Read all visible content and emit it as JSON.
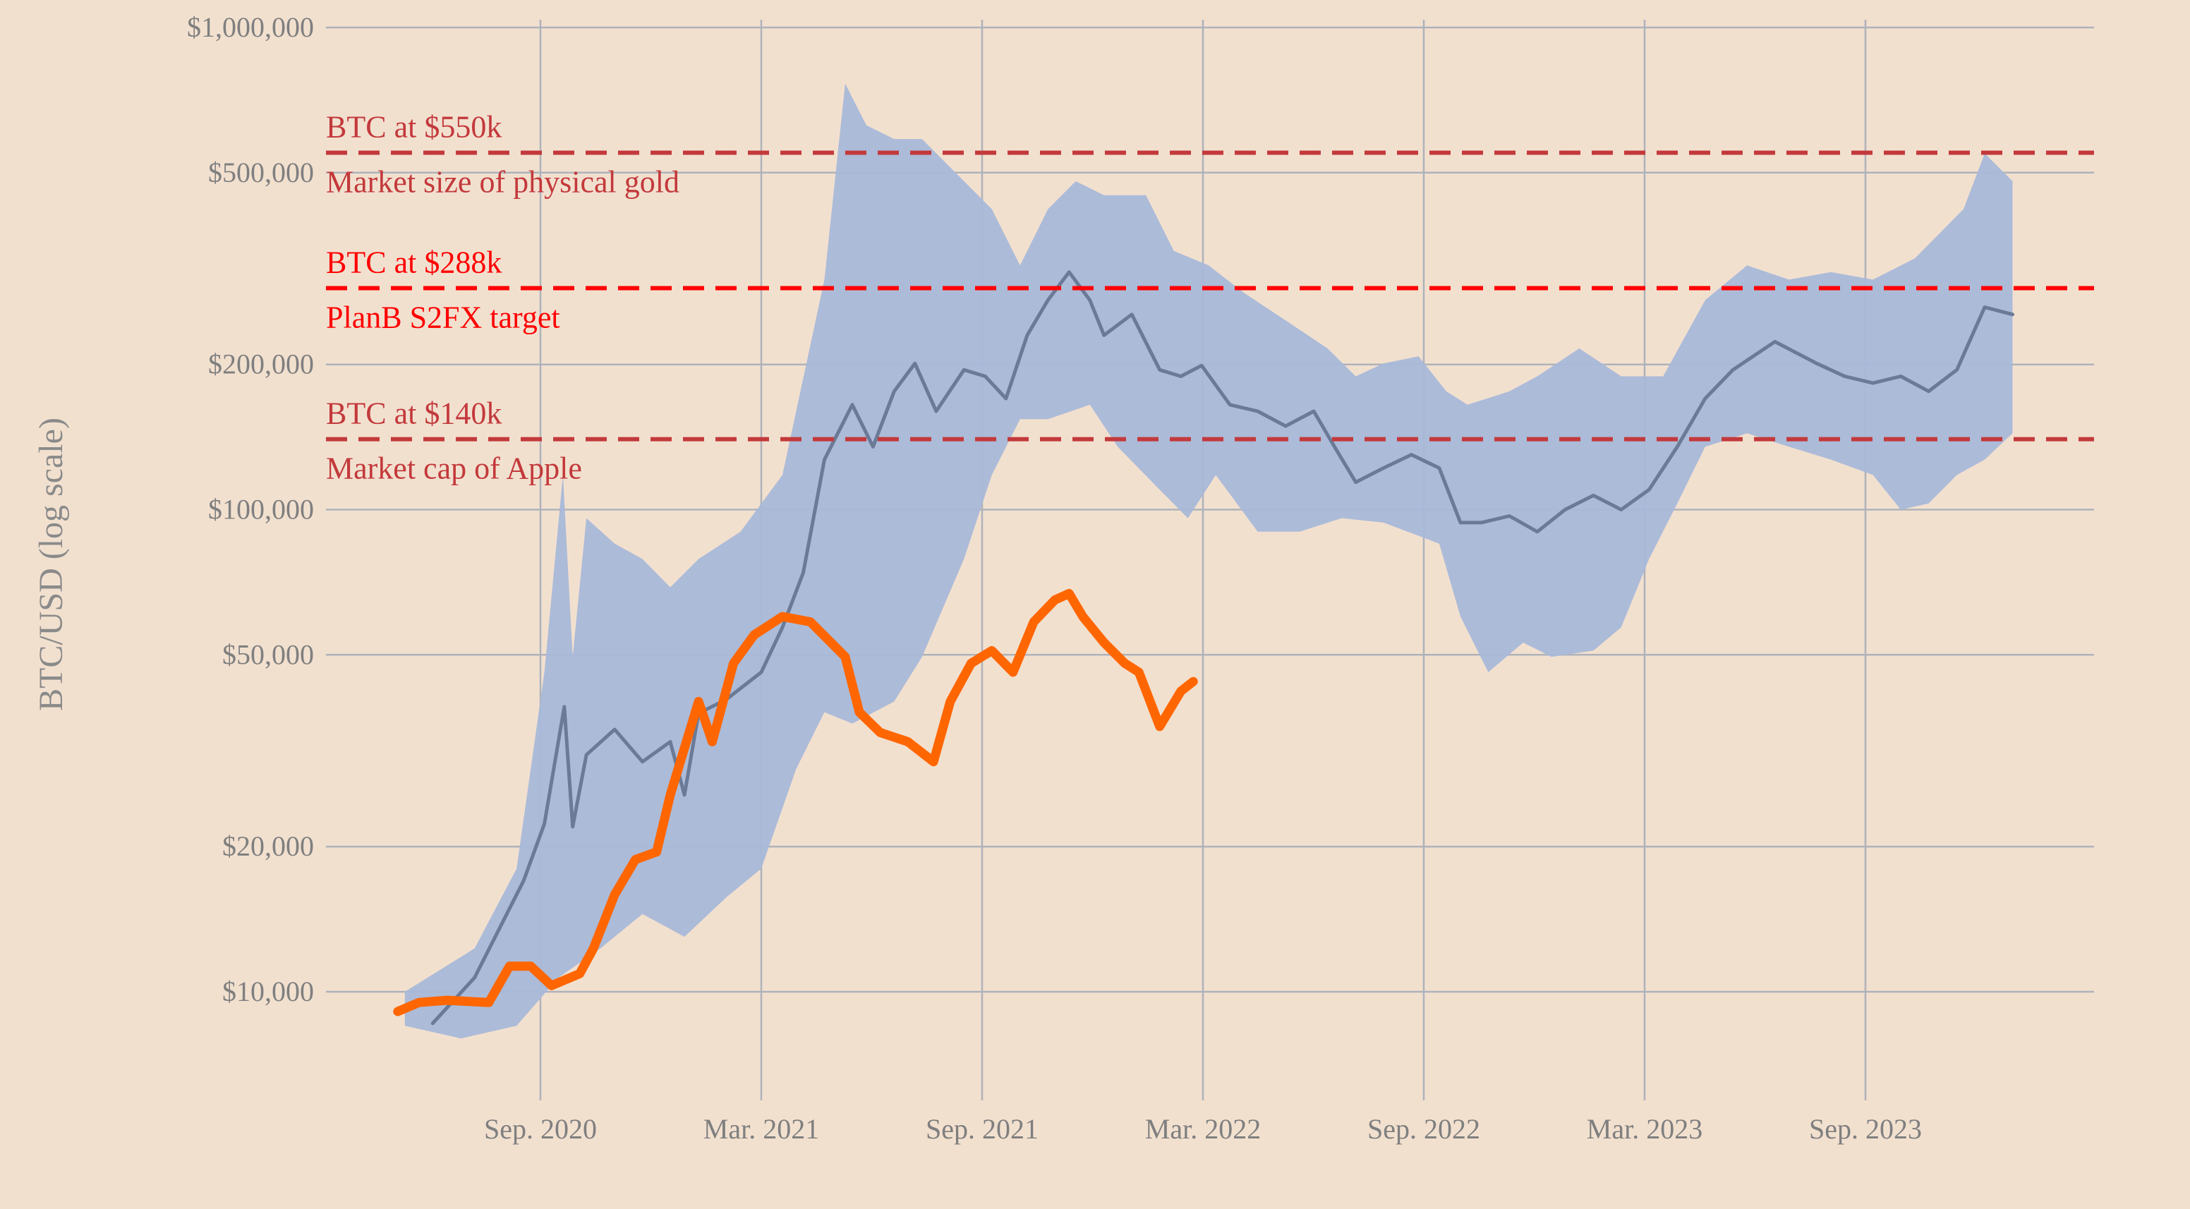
{
  "chart_data": {
    "type": "line",
    "title": "",
    "xlabel": "",
    "ylabel": "BTC/USD (log scale)",
    "yscale": "log",
    "ylim": [
      7000,
      1000000
    ],
    "xlim_decimal_year": [
      2020.25,
      2024.3
    ],
    "grid": true,
    "y_ticks": [
      {
        "value": 1000000,
        "label": "$1,000,000"
      },
      {
        "value": 500000,
        "label": "$500,000"
      },
      {
        "value": 200000,
        "label": "$200,000"
      },
      {
        "value": 100000,
        "label": "$100,000"
      },
      {
        "value": 50000,
        "label": "$50,000"
      },
      {
        "value": 20000,
        "label": "$20,000"
      },
      {
        "value": 10000,
        "label": "$10,000"
      }
    ],
    "x_ticks": [
      {
        "value": 2020.667,
        "label": "Sep. 2020"
      },
      {
        "value": 2021.167,
        "label": "Mar. 2021"
      },
      {
        "value": 2021.667,
        "label": "Sep. 2021"
      },
      {
        "value": 2022.167,
        "label": "Mar. 2022"
      },
      {
        "value": 2022.667,
        "label": "Sep. 2022"
      },
      {
        "value": 2023.167,
        "label": "Mar. 2023"
      },
      {
        "value": 2023.667,
        "label": "Sep. 2023"
      }
    ],
    "reference_lines": [
      {
        "value": 550000,
        "label_above": "BTC at $550k",
        "label_below": "Market size of physical gold",
        "color": "#c3393b"
      },
      {
        "value": 288000,
        "label_above": "BTC at $288k",
        "label_below": "PlanB S2FX target",
        "color": "#ff0000"
      },
      {
        "value": 140000,
        "label_above": "BTC at $140k",
        "label_below": "Market cap of Apple",
        "color": "#c3393b"
      }
    ],
    "series": [
      {
        "name": "Projection band",
        "kind": "band",
        "color": "#a8b8d8",
        "upper": [
          [
            2020.36,
            10000
          ],
          [
            2020.518,
            12300
          ],
          [
            2020.613,
            18000
          ],
          [
            2020.676,
            46000
          ],
          [
            2020.718,
            118000
          ],
          [
            2020.74,
            49500
          ],
          [
            2020.771,
            96000
          ],
          [
            2020.835,
            85000
          ],
          [
            2020.898,
            79000
          ],
          [
            2020.961,
            69000
          ],
          [
            2021.025,
            79000
          ],
          [
            2021.12,
            90000
          ],
          [
            2021.215,
            118000
          ],
          [
            2021.31,
            300000
          ],
          [
            2021.357,
            765000
          ],
          [
            2021.405,
            627000
          ],
          [
            2021.468,
            587000
          ],
          [
            2021.531,
            587000
          ],
          [
            2021.626,
            480000
          ],
          [
            2021.689,
            420000
          ],
          [
            2021.753,
            321000
          ],
          [
            2021.816,
            420000
          ],
          [
            2021.879,
            480000
          ],
          [
            2021.943,
            449000
          ],
          [
            2022.038,
            449000
          ],
          [
            2022.101,
            344000
          ],
          [
            2022.18,
            321000
          ],
          [
            2022.259,
            282000
          ],
          [
            2022.354,
            247000
          ],
          [
            2022.449,
            216000
          ],
          [
            2022.513,
            189000
          ],
          [
            2022.576,
            201000
          ],
          [
            2022.655,
            208000
          ],
          [
            2022.718,
            176000
          ],
          [
            2022.766,
            165000
          ],
          [
            2022.861,
            176000
          ],
          [
            2022.924,
            189000
          ],
          [
            2023.019,
            216000
          ],
          [
            2023.114,
            189000
          ],
          [
            2023.209,
            189000
          ],
          [
            2023.304,
            272000
          ],
          [
            2023.399,
            321000
          ],
          [
            2023.494,
            300000
          ],
          [
            2023.589,
            311000
          ],
          [
            2023.684,
            300000
          ],
          [
            2023.779,
            332000
          ],
          [
            2023.889,
            420000
          ],
          [
            2023.937,
            548000
          ],
          [
            2024.0,
            480000
          ]
        ],
        "lower": [
          [
            2020.36,
            8500
          ],
          [
            2020.487,
            8000
          ],
          [
            2020.613,
            8500
          ],
          [
            2020.708,
            10700
          ],
          [
            2020.803,
            12300
          ],
          [
            2020.898,
            14500
          ],
          [
            2020.993,
            13000
          ],
          [
            2021.088,
            15700
          ],
          [
            2021.167,
            18000
          ],
          [
            2021.246,
            29000
          ],
          [
            2021.31,
            38000
          ],
          [
            2021.373,
            36000
          ],
          [
            2021.468,
            40000
          ],
          [
            2021.531,
            49500
          ],
          [
            2021.626,
            79000
          ],
          [
            2021.689,
            118000
          ],
          [
            2021.753,
            154000
          ],
          [
            2021.816,
            154000
          ],
          [
            2021.911,
            165000
          ],
          [
            2021.974,
            135000
          ],
          [
            2022.069,
            110000
          ],
          [
            2022.133,
            96000
          ],
          [
            2022.196,
            118000
          ],
          [
            2022.291,
            90000
          ],
          [
            2022.386,
            90000
          ],
          [
            2022.481,
            96000
          ],
          [
            2022.576,
            94000
          ],
          [
            2022.702,
            85000
          ],
          [
            2022.75,
            60000
          ],
          [
            2022.813,
            46000
          ],
          [
            2022.892,
            53000
          ],
          [
            2022.956,
            49500
          ],
          [
            2023.051,
            51000
          ],
          [
            2023.114,
            57000
          ],
          [
            2023.177,
            79000
          ],
          [
            2023.241,
            103000
          ],
          [
            2023.304,
            135000
          ],
          [
            2023.399,
            144000
          ],
          [
            2023.494,
            135000
          ],
          [
            2023.589,
            127000
          ],
          [
            2023.684,
            118000
          ],
          [
            2023.747,
            100000
          ],
          [
            2023.81,
            103000
          ],
          [
            2023.874,
            118000
          ],
          [
            2023.937,
            127000
          ],
          [
            2024.0,
            144000
          ]
        ]
      },
      {
        "name": "Projection median",
        "kind": "line",
        "color": "#6b7a96",
        "points": [
          [
            2020.423,
            8600
          ],
          [
            2020.518,
            10700
          ],
          [
            2020.629,
            17000
          ],
          [
            2020.676,
            22300
          ],
          [
            2020.721,
            39000
          ],
          [
            2020.74,
            22000
          ],
          [
            2020.771,
            31000
          ],
          [
            2020.835,
            35000
          ],
          [
            2020.898,
            30000
          ],
          [
            2020.961,
            33000
          ],
          [
            2020.993,
            25600
          ],
          [
            2021.025,
            37800
          ],
          [
            2021.088,
            40400
          ],
          [
            2021.167,
            46000
          ],
          [
            2021.215,
            57000
          ],
          [
            2021.262,
            74000
          ],
          [
            2021.31,
            127000
          ],
          [
            2021.373,
            165000
          ],
          [
            2021.42,
            135000
          ],
          [
            2021.468,
            176000
          ],
          [
            2021.515,
            201000
          ],
          [
            2021.563,
            160000
          ],
          [
            2021.626,
            195000
          ],
          [
            2021.674,
            189000
          ],
          [
            2021.721,
            170000
          ],
          [
            2021.769,
            230000
          ],
          [
            2021.816,
            272000
          ],
          [
            2021.864,
            311000
          ],
          [
            2021.911,
            272000
          ],
          [
            2021.943,
            230000
          ],
          [
            2022.006,
            254000
          ],
          [
            2022.069,
            195000
          ],
          [
            2022.117,
            189000
          ],
          [
            2022.164,
            199000
          ],
          [
            2022.228,
            165000
          ],
          [
            2022.291,
            160000
          ],
          [
            2022.354,
            149000
          ],
          [
            2022.418,
            160000
          ],
          [
            2022.465,
            135000
          ],
          [
            2022.513,
            114000
          ],
          [
            2022.576,
            122000
          ],
          [
            2022.639,
            130000
          ],
          [
            2022.702,
            122000
          ],
          [
            2022.75,
            94000
          ],
          [
            2022.797,
            94000
          ],
          [
            2022.861,
            97000
          ],
          [
            2022.924,
            90000
          ],
          [
            2022.987,
            100000
          ],
          [
            2023.051,
            107000
          ],
          [
            2023.114,
            100000
          ],
          [
            2023.177,
            110000
          ],
          [
            2023.241,
            135000
          ],
          [
            2023.304,
            170000
          ],
          [
            2023.367,
            195000
          ],
          [
            2023.462,
            223000
          ],
          [
            2023.557,
            201000
          ],
          [
            2023.62,
            189000
          ],
          [
            2023.684,
            183000
          ],
          [
            2023.747,
            189000
          ],
          [
            2023.81,
            176000
          ],
          [
            2023.874,
            195000
          ],
          [
            2023.937,
            263000
          ],
          [
            2024.0,
            254000
          ]
        ]
      },
      {
        "name": "BTC price",
        "kind": "line",
        "color": "#ff6600",
        "points": [
          [
            2020.344,
            9100
          ],
          [
            2020.392,
            9500
          ],
          [
            2020.455,
            9600
          ],
          [
            2020.55,
            9500
          ],
          [
            2020.597,
            11300
          ],
          [
            2020.645,
            11300
          ],
          [
            2020.692,
            10300
          ],
          [
            2020.756,
            10900
          ],
          [
            2020.787,
            12300
          ],
          [
            2020.835,
            15900
          ],
          [
            2020.882,
            18800
          ],
          [
            2020.93,
            19500
          ],
          [
            2020.961,
            25600
          ],
          [
            2021.025,
            40000
          ],
          [
            2021.056,
            33000
          ],
          [
            2021.104,
            48000
          ],
          [
            2021.151,
            55000
          ],
          [
            2021.215,
            60000
          ],
          [
            2021.278,
            58500
          ],
          [
            2021.325,
            53000
          ],
          [
            2021.357,
            49500
          ],
          [
            2021.389,
            38000
          ],
          [
            2021.436,
            34500
          ],
          [
            2021.499,
            33000
          ],
          [
            2021.557,
            30000
          ],
          [
            2021.595,
            40000
          ],
          [
            2021.642,
            48000
          ],
          [
            2021.689,
            51000
          ],
          [
            2021.737,
            46000
          ],
          [
            2021.784,
            58500
          ],
          [
            2021.832,
            65000
          ],
          [
            2021.864,
            67000
          ],
          [
            2021.895,
            60000
          ],
          [
            2021.943,
            53000
          ],
          [
            2021.99,
            48000
          ],
          [
            2022.022,
            46000
          ],
          [
            2022.069,
            35500
          ],
          [
            2022.117,
            42000
          ],
          [
            2022.145,
            44000
          ]
        ]
      }
    ]
  }
}
